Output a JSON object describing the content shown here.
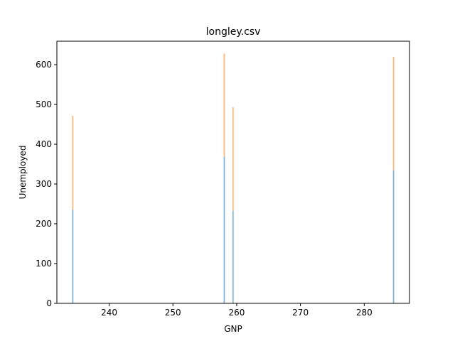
{
  "chart_data": {
    "type": "bar",
    "title": "longley.csv",
    "xlabel": "GNP",
    "ylabel": "Unemployed",
    "xlim": [
      231.8,
      287.1
    ],
    "ylim": [
      0,
      659
    ],
    "x_ticks": [
      240,
      250,
      260,
      270,
      280
    ],
    "y_ticks": [
      0,
      100,
      200,
      300,
      400,
      500,
      600
    ],
    "grid": false,
    "stacked": true,
    "bar_width": 0.2,
    "series": [
      {
        "color": "#1f77b4",
        "x": [
          234.289,
          258.054,
          259.426,
          284.599
        ],
        "values": [
          235.6,
          368.2,
          232.5,
          335.1
        ]
      },
      {
        "color": "#ff7f0e",
        "x": [
          234.289,
          258.054,
          259.426,
          284.599
        ],
        "values": [
          235.6,
          259.7,
          260.9,
          284.6
        ]
      }
    ]
  }
}
